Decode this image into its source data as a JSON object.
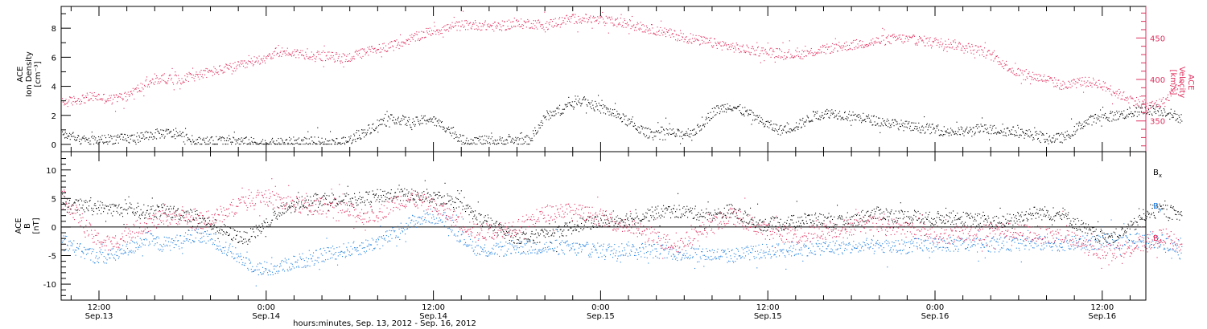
{
  "chart_data": [
    {
      "type": "scatter",
      "panel": "top",
      "ylabel_lines": [
        "ACE",
        "Ion Density"
      ],
      "yunit": "[cm⁻³]",
      "ylim": [
        -0.5,
        9.5
      ],
      "yticks": [
        0,
        2,
        4,
        6,
        8
      ],
      "y2label_lines": [
        "ACE",
        "Velocity",
        "[km/s]"
      ],
      "y2lim": [
        313,
        488
      ],
      "y2ticks": [
        350,
        400,
        450
      ],
      "series": [
        {
          "name": "Ion Density",
          "axis": "left",
          "color": "#000000",
          "t": [
            0,
            1,
            2,
            3,
            4,
            5,
            6,
            7,
            8,
            9,
            10,
            11,
            12,
            13,
            14,
            15,
            16,
            17,
            18,
            19,
            20,
            21,
            22,
            23,
            24,
            25,
            26,
            27,
            28,
            29,
            30,
            31,
            32,
            33,
            34,
            35,
            36,
            37,
            38,
            39,
            40,
            41,
            42,
            43,
            44,
            45,
            46,
            47,
            48,
            49,
            50,
            51,
            52,
            53,
            54,
            55,
            56,
            57,
            58,
            59,
            60,
            61,
            62,
            63,
            64,
            65,
            66,
            67
          ],
          "values": [
            0.8,
            0.3,
            0.3,
            0.4,
            0.4,
            0.6,
            0.8,
            0.7,
            0.2,
            0.2,
            0.3,
            0.2,
            0.1,
            0.1,
            0.2,
            0.2,
            0.1,
            0.2,
            0.8,
            1.5,
            1.8,
            1.5,
            1.8,
            1.2,
            0.3,
            0.3,
            0.2,
            0.3,
            0.3,
            2.0,
            2.5,
            3.2,
            2.6,
            2.2,
            1.5,
            0.8,
            0.9,
            0.7,
            1.0,
            2.3,
            2.7,
            2.2,
            1.5,
            1.0,
            1.3,
            2.0,
            2.2,
            2.0,
            1.8,
            1.6,
            1.4,
            1.2,
            1.1,
            0.9,
            0.9,
            1.1,
            1.0,
            0.9,
            0.7,
            0.4,
            0.5,
            1.4,
            1.9,
            2.0,
            2.2,
            2.4,
            2.3,
            1.8
          ],
          "spread": 0.35
        },
        {
          "name": "Velocity",
          "axis": "right",
          "color": "#e0305f",
          "t": [
            0,
            1,
            2,
            3,
            4,
            5,
            6,
            7,
            8,
            9,
            10,
            11,
            12,
            13,
            14,
            15,
            16,
            17,
            18,
            19,
            20,
            21,
            22,
            23,
            24,
            25,
            26,
            27,
            28,
            29,
            30,
            31,
            32,
            33,
            34,
            35,
            36,
            37,
            38,
            39,
            40,
            41,
            42,
            43,
            44,
            45,
            46,
            47,
            48,
            49,
            50,
            51,
            52,
            53,
            54,
            55,
            56,
            57,
            58,
            59,
            60,
            61,
            62,
            63,
            64,
            65,
            66,
            67
          ],
          "values": [
            372,
            376,
            380,
            376,
            382,
            394,
            402,
            400,
            405,
            410,
            414,
            418,
            426,
            434,
            432,
            430,
            428,
            426,
            432,
            438,
            442,
            450,
            458,
            462,
            466,
            466,
            464,
            467,
            468,
            466,
            472,
            474,
            472,
            470,
            467,
            462,
            458,
            452,
            448,
            444,
            440,
            436,
            434,
            432,
            430,
            434,
            438,
            441,
            444,
            447,
            450,
            448,
            446,
            444,
            440,
            435,
            425,
            410,
            405,
            400,
            392,
            398,
            396,
            385,
            376,
            368,
            374,
            400
          ],
          "spread": 6
        }
      ]
    },
    {
      "type": "scatter",
      "panel": "bottom",
      "ylabel_lines": [
        "ACE",
        "B",
        "[nT]"
      ],
      "ylim": [
        -12.8,
        13.2
      ],
      "yticks": [
        -10,
        -5,
        0,
        5,
        10
      ],
      "zero_line": true,
      "series": [
        {
          "name": "Bx",
          "label": "B",
          "sub": "x",
          "color": "#000000",
          "t": [
            0,
            1,
            2,
            3,
            4,
            5,
            6,
            7,
            8,
            9,
            10,
            11,
            12,
            13,
            14,
            15,
            16,
            17,
            18,
            19,
            20,
            21,
            22,
            23,
            24,
            25,
            26,
            27,
            28,
            29,
            30,
            31,
            32,
            33,
            34,
            35,
            36,
            37,
            38,
            39,
            40,
            41,
            42,
            43,
            44,
            45,
            46,
            47,
            48,
            49,
            50,
            51,
            52,
            53,
            54,
            55,
            56,
            57,
            58,
            59,
            60,
            61,
            62,
            63,
            64,
            65,
            66,
            67
          ],
          "values": [
            3.5,
            3.8,
            3.6,
            3.2,
            3.0,
            2.8,
            3.0,
            2.5,
            2.0,
            0.5,
            -1.0,
            -2.0,
            0.0,
            2.5,
            4.0,
            5.0,
            5.0,
            4.8,
            5.0,
            5.5,
            5.8,
            5.5,
            5.2,
            5.0,
            3.5,
            1.5,
            0.0,
            -1.5,
            -2.0,
            -1.0,
            -0.5,
            0.5,
            1.0,
            1.2,
            1.6,
            2.2,
            2.8,
            2.8,
            2.5,
            2.0,
            3.0,
            1.5,
            0.5,
            0.5,
            1.2,
            1.5,
            1.0,
            0.8,
            2.0,
            2.5,
            2.0,
            1.8,
            1.5,
            1.8,
            1.5,
            1.2,
            0.8,
            1.5,
            2.5,
            2.5,
            2.0,
            0.0,
            -1.5,
            -1.5,
            0.0,
            2.8,
            3.0,
            2.0
          ],
          "spread": 1.2
        },
        {
          "name": "By",
          "label": "B",
          "sub": "y",
          "color": "#1f7fdf",
          "t": [
            0,
            1,
            2,
            3,
            4,
            5,
            6,
            7,
            8,
            9,
            10,
            11,
            12,
            13,
            14,
            15,
            16,
            17,
            18,
            19,
            20,
            21,
            22,
            23,
            24,
            25,
            26,
            27,
            28,
            29,
            30,
            31,
            32,
            33,
            34,
            35,
            36,
            37,
            38,
            39,
            40,
            41,
            42,
            43,
            44,
            45,
            46,
            47,
            48,
            49,
            50,
            51,
            52,
            53,
            54,
            55,
            56,
            57,
            58,
            59,
            60,
            61,
            62,
            63,
            64,
            65,
            66,
            67
          ],
          "values": [
            -2.0,
            -4.0,
            -5.0,
            -5.0,
            -4.0,
            -2.0,
            -3.0,
            -2.5,
            -1.5,
            -2.0,
            -4.0,
            -6.0,
            -7.5,
            -7.0,
            -6.0,
            -5.5,
            -4.5,
            -4.0,
            -3.5,
            -2.5,
            -1.0,
            1.0,
            2.0,
            1.5,
            -2.0,
            -4.0,
            -4.0,
            -3.5,
            -3.5,
            -3.5,
            -3.5,
            -3.8,
            -4.0,
            -4.0,
            -3.8,
            -4.0,
            -4.2,
            -4.5,
            -4.5,
            -4.8,
            -5.0,
            -4.5,
            -4.2,
            -4.0,
            -3.8,
            -3.6,
            -3.5,
            -3.5,
            -3.4,
            -3.4,
            -3.4,
            -3.2,
            -3.0,
            -3.0,
            -3.0,
            -3.0,
            -3.0,
            -2.8,
            -2.8,
            -2.8,
            -2.8,
            -2.8,
            -2.5,
            -2.4,
            -2.3,
            -2.2,
            -2.5,
            -4.5
          ],
          "spread": 1.3
        },
        {
          "name": "Bz",
          "label": "B",
          "sub": "z",
          "color": "#e0305f",
          "t": [
            0,
            1,
            2,
            3,
            4,
            5,
            6,
            7,
            8,
            9,
            10,
            11,
            12,
            13,
            14,
            15,
            16,
            17,
            18,
            19,
            20,
            21,
            22,
            23,
            24,
            25,
            26,
            27,
            28,
            29,
            30,
            31,
            32,
            33,
            34,
            35,
            36,
            37,
            38,
            39,
            40,
            41,
            42,
            43,
            44,
            45,
            46,
            47,
            48,
            49,
            50,
            51,
            52,
            53,
            54,
            55,
            56,
            57,
            58,
            59,
            60,
            61,
            62,
            63,
            64,
            65,
            66,
            67
          ],
          "values": [
            5.5,
            2.0,
            -2.0,
            -3.0,
            -1.0,
            0.5,
            1.5,
            2.0,
            1.0,
            1.5,
            3.0,
            5.0,
            5.5,
            4.5,
            4.0,
            3.5,
            4.0,
            3.0,
            2.0,
            2.5,
            4.5,
            5.0,
            4.0,
            2.5,
            0.5,
            -1.0,
            -0.5,
            0.0,
            1.0,
            2.5,
            3.0,
            2.5,
            2.0,
            1.0,
            0.0,
            -1.0,
            -2.5,
            -3.0,
            -1.0,
            0.5,
            2.0,
            1.0,
            -0.5,
            -1.0,
            -1.5,
            -1.0,
            -0.5,
            0.0,
            0.5,
            0.5,
            0.0,
            -0.5,
            -1.0,
            -1.5,
            -1.0,
            -0.8,
            -0.5,
            -0.8,
            -1.0,
            -1.5,
            -1.5,
            -3.0,
            -4.0,
            -4.0,
            -3.5,
            -2.5,
            -1.5,
            -3.5
          ],
          "spread": 1.5
        }
      ]
    }
  ],
  "x_axis": {
    "tick_labels": [
      {
        "time": "12:00",
        "date": "Sep.13"
      },
      {
        "time": "0:00",
        "date": "Sep.14"
      },
      {
        "time": "12:00",
        "date": "Sep.14"
      },
      {
        "time": "0:00",
        "date": "Sep.15"
      },
      {
        "time": "12:00",
        "date": "Sep.15"
      },
      {
        "time": "0:00",
        "date": "Sep.16"
      },
      {
        "time": "12:00",
        "date": "Sep.16"
      }
    ],
    "xlabel": "hours:minutes, Sep. 13, 2012 - Sep. 16, 2012"
  }
}
